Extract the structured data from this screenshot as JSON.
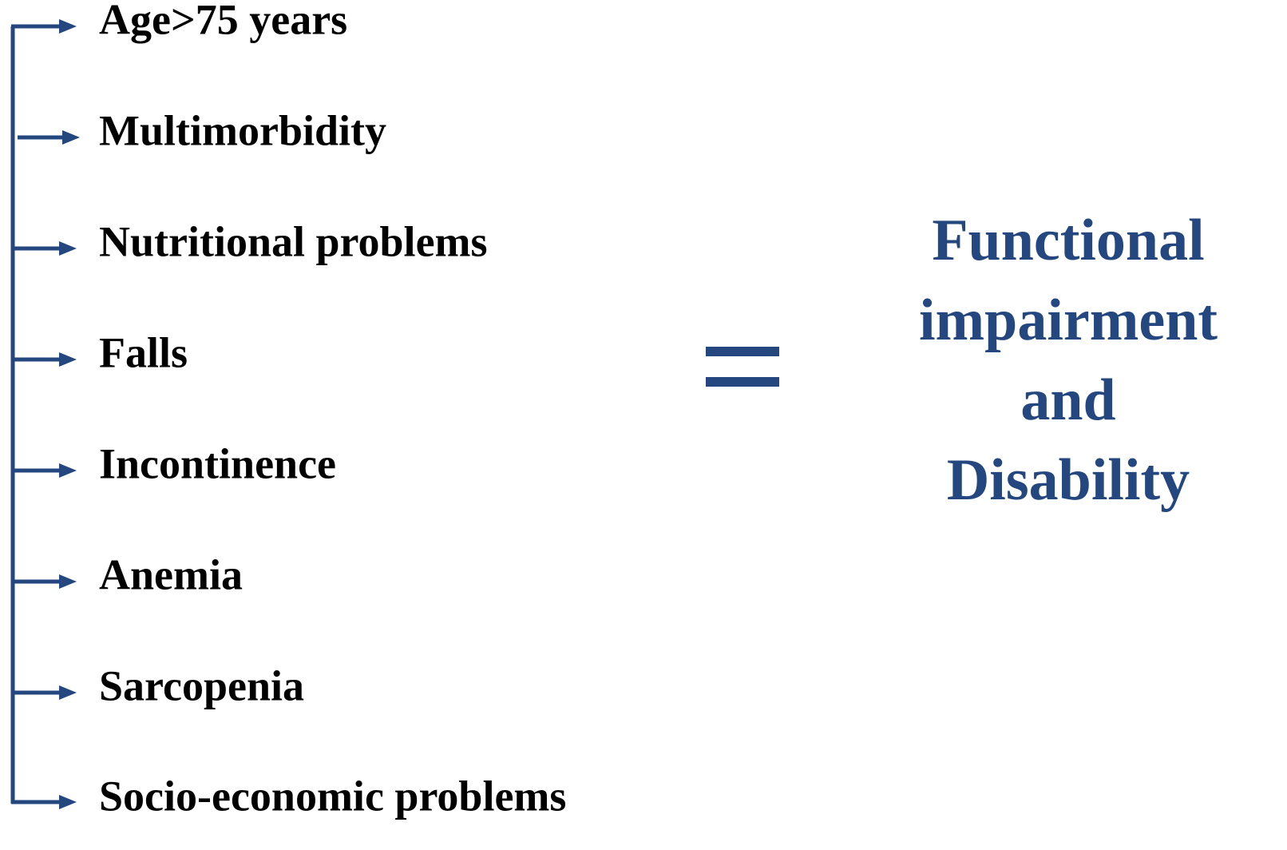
{
  "factors": [
    "Age>75 years",
    "Multimorbidity",
    "Nutritional problems",
    "Falls",
    "Incontinence",
    "Anemia",
    "Sarcopenia",
    "Socio-economic problems"
  ],
  "result": {
    "lines": [
      "Functional",
      "impairment",
      "and",
      "Disability"
    ]
  }
}
